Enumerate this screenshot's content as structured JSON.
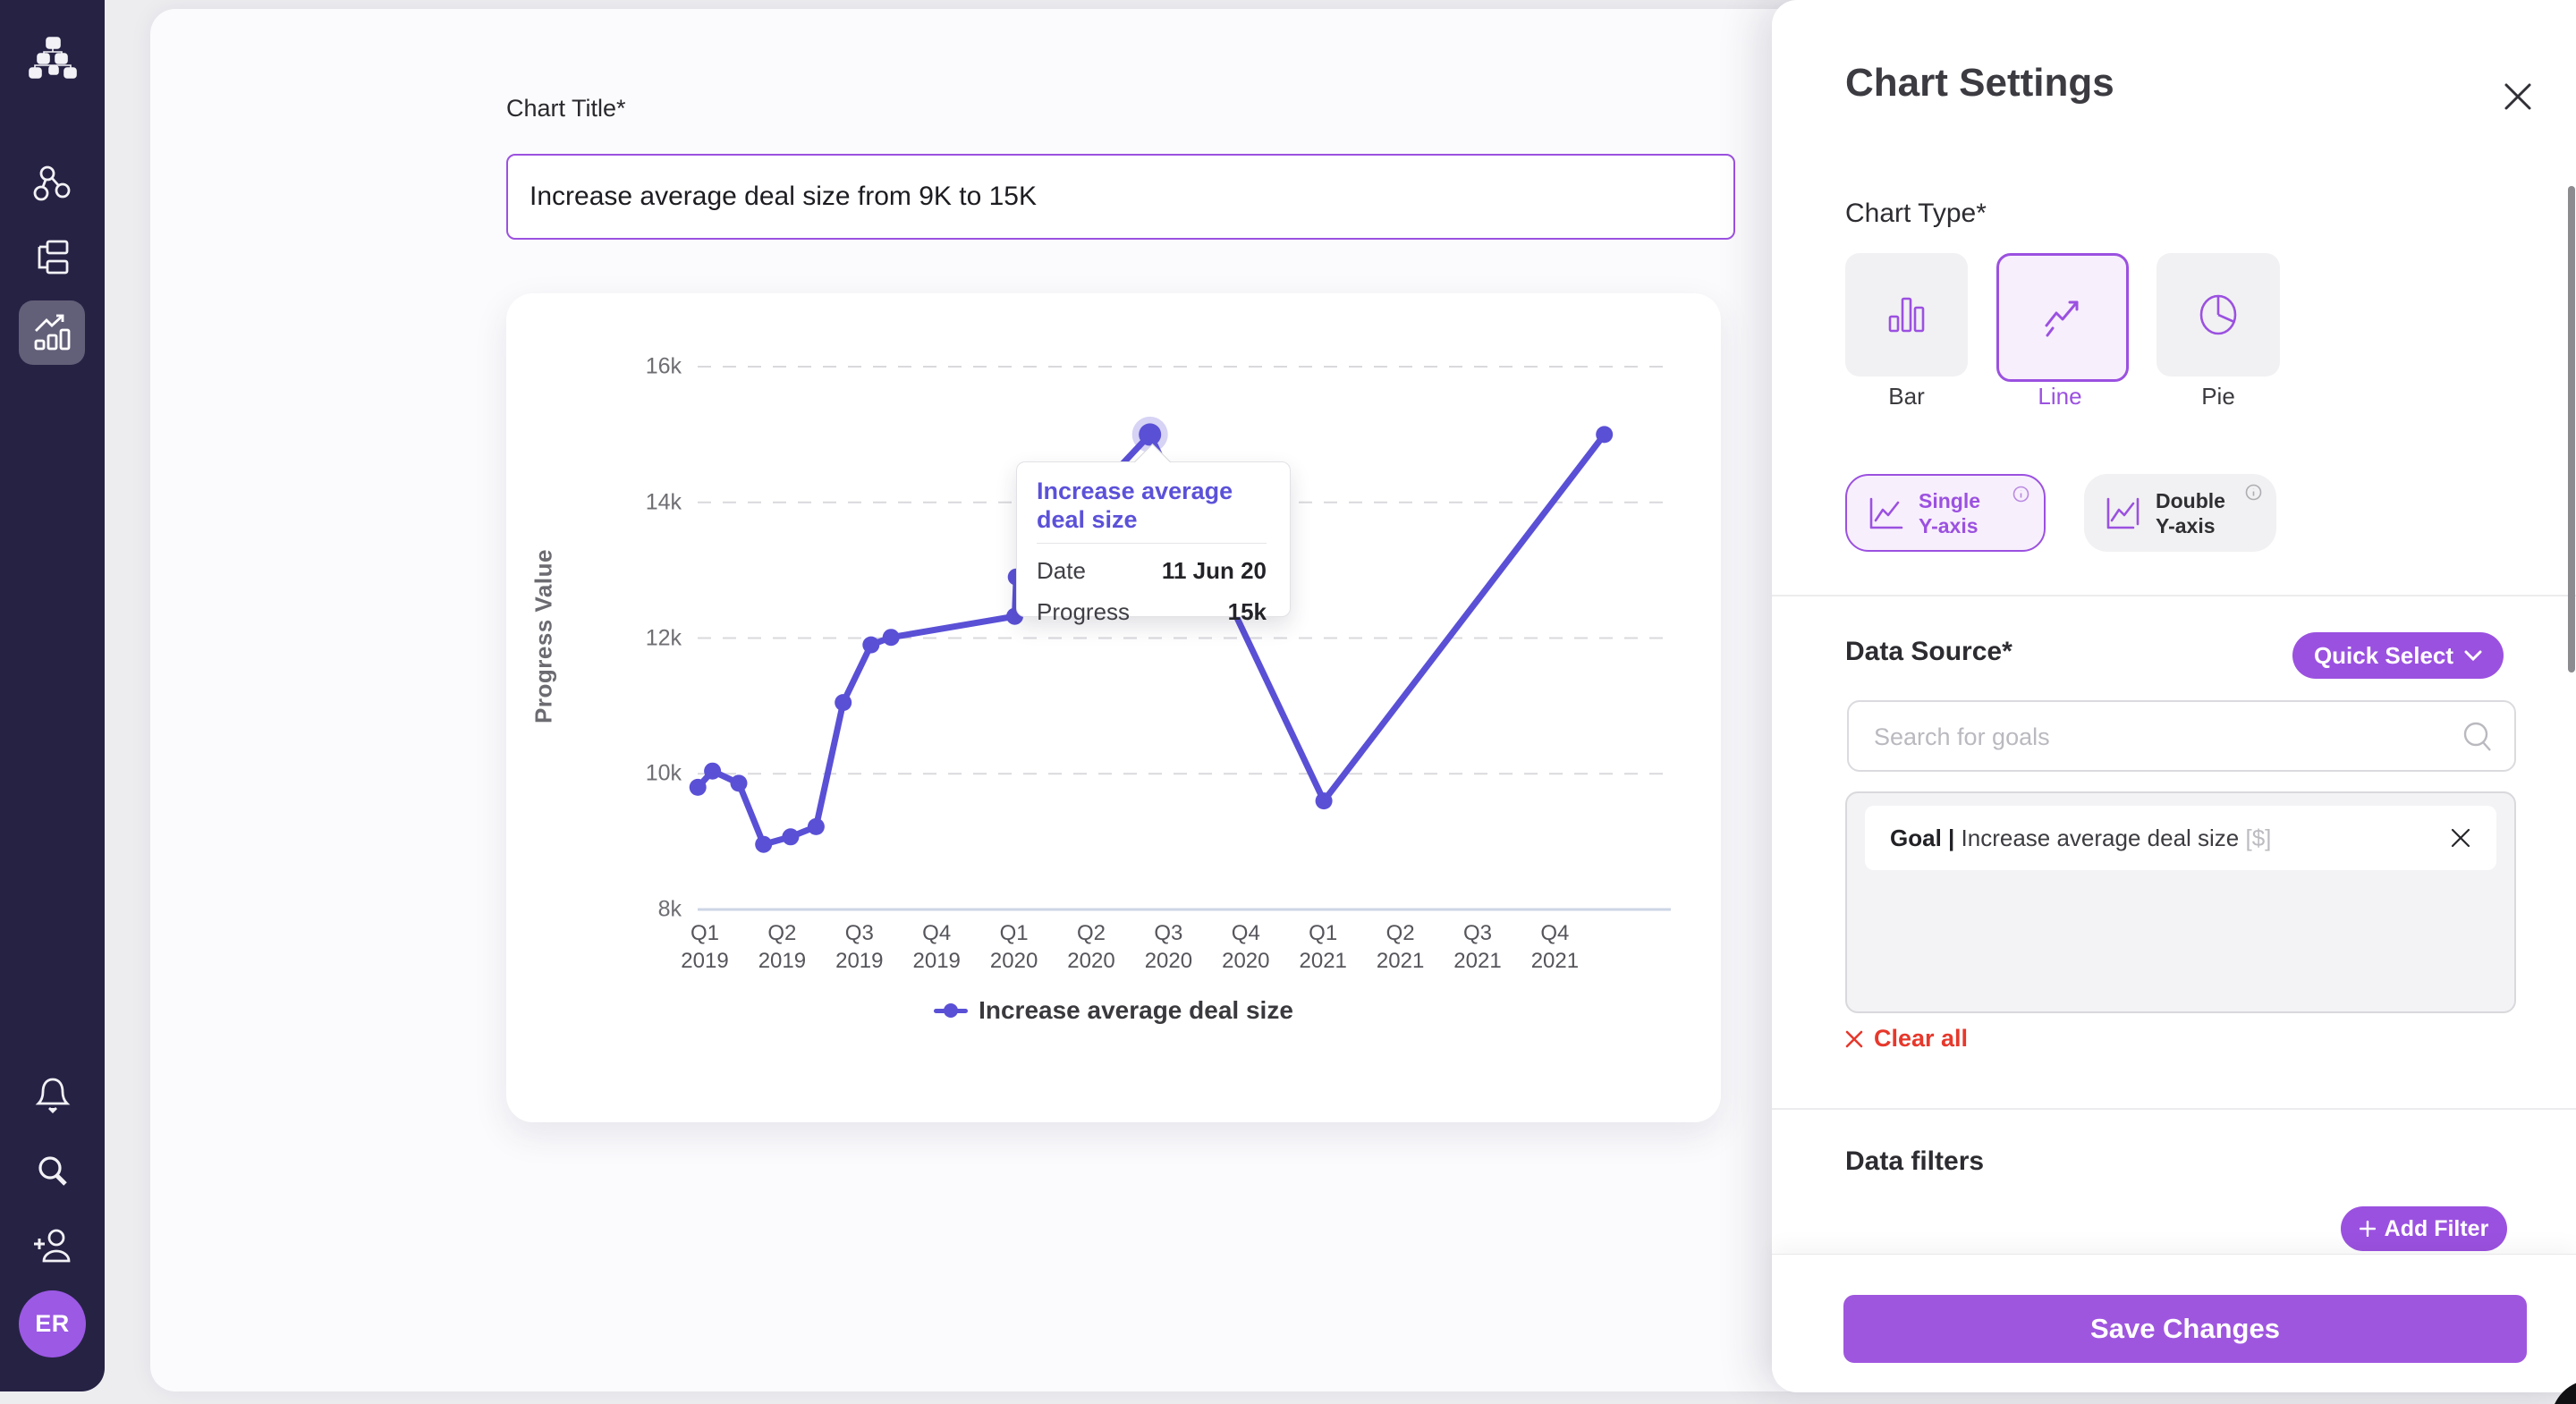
{
  "sidebar": {
    "avatar_initials": "ER"
  },
  "main": {
    "chart_title_label": "Chart Title*",
    "chart_title_value": "Increase average deal size from 9K to 15K"
  },
  "chart_data": {
    "type": "line",
    "ylabel": "Progress Value",
    "ylim": [
      8000,
      16000
    ],
    "grid": true,
    "legend_position": "bottom",
    "y_ticks": [
      "16k",
      "14k",
      "12k",
      "10k",
      "8k"
    ],
    "y_tick_values": [
      16000,
      14000,
      12000,
      10000,
      8000
    ],
    "categories": [
      "Q1 2019",
      "Q2 2019",
      "Q3 2019",
      "Q4 2019",
      "Q1 2020",
      "Q2 2020",
      "Q3 2020",
      "Q4 2020",
      "Q1 2021",
      "Q2 2021",
      "Q3 2021",
      "Q4 2021"
    ],
    "series": [
      {
        "name": "Increase average deal size",
        "color": "#5a50d6",
        "points": [
          [
            -0.09,
            9800
          ],
          [
            0.1,
            10040
          ],
          [
            0.44,
            9860
          ],
          [
            0.76,
            8960
          ],
          [
            1.11,
            9070
          ],
          [
            1.44,
            9220
          ],
          [
            1.79,
            11050
          ],
          [
            2.15,
            11900
          ],
          [
            2.41,
            12010
          ],
          [
            4.01,
            12320
          ],
          [
            4.03,
            12900
          ],
          [
            5.76,
            15000
          ],
          [
            8.01,
            9600
          ],
          [
            11.64,
            15000
          ]
        ]
      }
    ],
    "highlight_point_index": 11,
    "tooltip": {
      "title": "Increase average deal size",
      "rows": [
        {
          "label": "Date",
          "value": "11 Jun 20"
        },
        {
          "label": "Progress",
          "value": "15k"
        }
      ]
    },
    "legend": {
      "label": "Increase average deal size",
      "color": "#5a50d6"
    }
  },
  "panel": {
    "title": "Chart Settings",
    "chart_type_label": "Chart Type*",
    "types": {
      "bar": "Bar",
      "line": "Line",
      "pie": "Pie"
    },
    "yaxis": {
      "single_line1": "Single",
      "single_line2": "Y-axis",
      "double_line1": "Double",
      "double_line2": "Y-axis"
    },
    "data_source_label": "Data Source*",
    "quick_select_label": "Quick Select",
    "search_placeholder": "Search for goals",
    "goal": {
      "prefix": "Goal | ",
      "name": "Increase average deal size",
      "unit": " [$]"
    },
    "clear_all_label": "Clear all",
    "data_filters_label": "Data filters",
    "add_filter_label": "Add Filter",
    "save_label": "Save Changes"
  },
  "colors": {
    "accent": "#9b51e0",
    "button_purple": "#9f56df",
    "line_series": "#5a50d6",
    "danger_red": "#e7382c",
    "sidebar_bg": "#262244",
    "avatar_bg": "#9b59e4"
  }
}
